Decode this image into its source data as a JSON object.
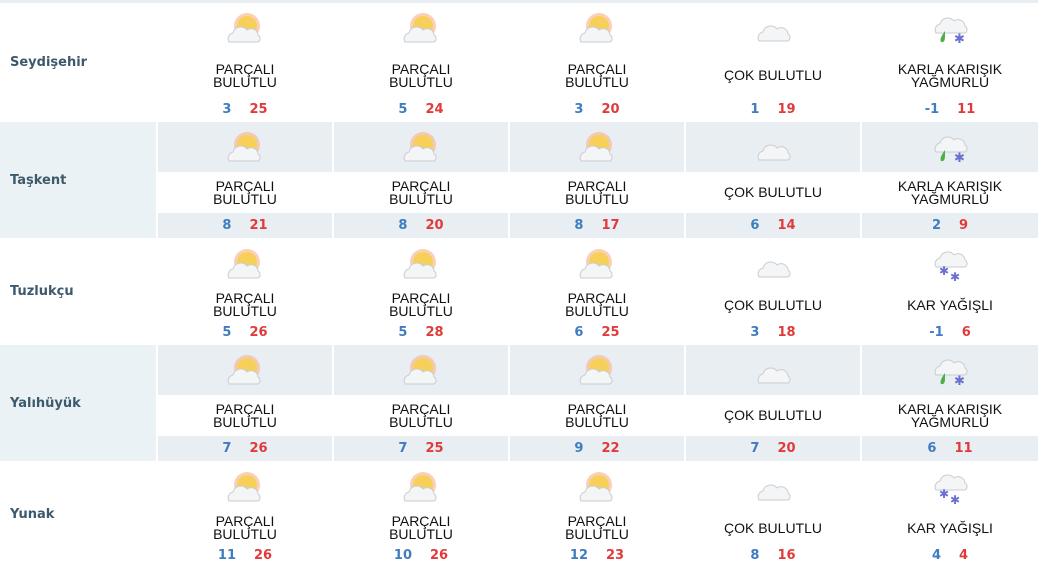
{
  "rows": [
    {
      "city": "Seydişehir",
      "days": [
        {
          "icon": "partly-cloudy-icon",
          "condition": "PARÇALI BULUTLU",
          "low": "3",
          "high": "25"
        },
        {
          "icon": "partly-cloudy-icon",
          "condition": "PARÇALI BULUTLU",
          "low": "5",
          "high": "24"
        },
        {
          "icon": "partly-cloudy-icon",
          "condition": "PARÇALI BULUTLU",
          "low": "3",
          "high": "20"
        },
        {
          "icon": "cloudy-icon",
          "condition": "ÇOK BULUTLU",
          "low": "1",
          "high": "19"
        },
        {
          "icon": "sleet-icon",
          "condition": "KARLA KARIŞIK YAĞMURLU",
          "low": "-1",
          "high": "11"
        }
      ]
    },
    {
      "city": "Taşkent",
      "days": [
        {
          "icon": "partly-cloudy-icon",
          "condition": "PARÇALI BULUTLU",
          "low": "8",
          "high": "21"
        },
        {
          "icon": "partly-cloudy-icon",
          "condition": "PARÇALI BULUTLU",
          "low": "8",
          "high": "20"
        },
        {
          "icon": "partly-cloudy-icon",
          "condition": "PARÇALI BULUTLU",
          "low": "8",
          "high": "17"
        },
        {
          "icon": "cloudy-icon",
          "condition": "ÇOK BULUTLU",
          "low": "6",
          "high": "14"
        },
        {
          "icon": "sleet-icon",
          "condition": "KARLA KARIŞIK YAĞMURLU",
          "low": "2",
          "high": "9"
        }
      ]
    },
    {
      "city": "Tuzlukçu",
      "days": [
        {
          "icon": "partly-cloudy-icon",
          "condition": "PARÇALI BULUTLU",
          "low": "5",
          "high": "26"
        },
        {
          "icon": "partly-cloudy-icon",
          "condition": "PARÇALI BULUTLU",
          "low": "5",
          "high": "28"
        },
        {
          "icon": "partly-cloudy-icon",
          "condition": "PARÇALI BULUTLU",
          "low": "6",
          "high": "25"
        },
        {
          "icon": "cloudy-icon",
          "condition": "ÇOK BULUTLU",
          "low": "3",
          "high": "18"
        },
        {
          "icon": "snow-icon",
          "condition": "KAR YAĞIŞLI",
          "low": "-1",
          "high": "6"
        }
      ]
    },
    {
      "city": "Yalıhüyük",
      "days": [
        {
          "icon": "partly-cloudy-icon",
          "condition": "PARÇALI BULUTLU",
          "low": "7",
          "high": "26"
        },
        {
          "icon": "partly-cloudy-icon",
          "condition": "PARÇALI BULUTLU",
          "low": "7",
          "high": "25"
        },
        {
          "icon": "partly-cloudy-icon",
          "condition": "PARÇALI BULUTLU",
          "low": "9",
          "high": "22"
        },
        {
          "icon": "cloudy-icon",
          "condition": "ÇOK BULUTLU",
          "low": "7",
          "high": "20"
        },
        {
          "icon": "sleet-icon",
          "condition": "KARLA KARIŞIK YAĞMURLU",
          "low": "6",
          "high": "11"
        }
      ]
    },
    {
      "city": "Yunak",
      "days": [
        {
          "icon": "partly-cloudy-icon",
          "condition": "PARÇALI BULUTLU",
          "low": "11",
          "high": "26"
        },
        {
          "icon": "partly-cloudy-icon",
          "condition": "PARÇALI BULUTLU",
          "low": "10",
          "high": "26"
        },
        {
          "icon": "partly-cloudy-icon",
          "condition": "PARÇALI BULUTLU",
          "low": "12",
          "high": "23"
        },
        {
          "icon": "cloudy-icon",
          "condition": "ÇOK BULUTLU",
          "low": "8",
          "high": "16"
        },
        {
          "icon": "snow-icon",
          "condition": "KAR YAĞIŞLI",
          "low": "4",
          "high": "4"
        }
      ]
    }
  ],
  "colors": {
    "low": "#3f7cc0",
    "high": "#e03a3a",
    "alt_bg": "#e8eef2",
    "city": "#3d5a6c"
  }
}
